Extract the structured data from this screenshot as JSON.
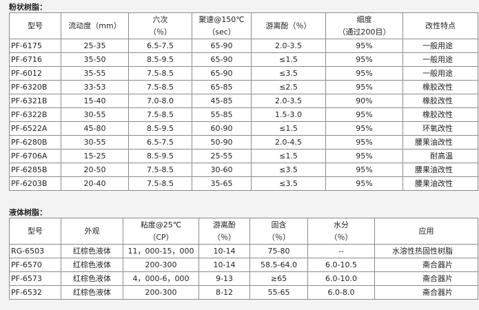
{
  "powder": {
    "title": "粉状树脂：",
    "header": [
      "型号",
      "流动度（mm）",
      "六次\n（％）",
      "聚速@150℃\n（sec）",
      "游离酚（％）",
      "细度\n（通过200目）",
      "改性特点"
    ],
    "rows": [
      [
        "PF-6175",
        "25-35",
        "6.5-7.5",
        "65-90",
        "2.0-3.5",
        "95%",
        "一般用途"
      ],
      [
        "PF-6716",
        "35-50",
        "8.5-9.5",
        "65-90",
        "≤1.5",
        "95%",
        "一般用途"
      ],
      [
        "PF-6012",
        "35-55",
        "7.5-8.5",
        "65-90",
        "≤3.5",
        "95%",
        "一般用途"
      ],
      [
        "PF-6320B",
        "33-53",
        "7.5-8.5",
        "65-85",
        "≤2.5",
        "95%",
        "橡胶改性"
      ],
      [
        "PF-6321B",
        "15-40",
        "7.0-8.0",
        "45-85",
        "2.0-3.5",
        "90%",
        "橡胶改性"
      ],
      [
        "PF-6322B",
        "30-55",
        "7.5-8.5",
        "55-85",
        "1.5-3.0",
        "95%",
        "橡胶改性"
      ],
      [
        "PF-6522A",
        "45-80",
        "8.5-9.5",
        "60-90",
        "≤1.5",
        "95%",
        "环氧改性"
      ],
      [
        "PF-6280B",
        "30-55",
        "6.5-7.5",
        "50-90",
        "2.0-4.5",
        "95%",
        "腰果油改性"
      ],
      [
        "PF-6706A",
        "15-25",
        "8.5-9.5",
        "25-55",
        "≤1.5",
        "95%",
        "耐高温"
      ],
      [
        "PF-6285B",
        "20-50",
        "7.5-8.5",
        "30-60",
        "≤3.5",
        "95%",
        "腰果油改性"
      ],
      [
        "PF-6203B",
        "20-40",
        "7.5-8.5",
        "35-65",
        "≤3.5",
        "95%",
        "腰果油改性"
      ]
    ]
  },
  "liquid": {
    "title": "液体树脂：",
    "header": [
      "型号",
      "外观",
      "粘度@25℃\n（CP）",
      "游离酚\n（％）",
      "固含\n（％）",
      "水分\n（％）",
      "应用"
    ],
    "rows": [
      [
        "RG-6503",
        "红棕色液体",
        "11，000-15，000",
        "10-14",
        "75-80",
        "--",
        "水溶性热固性树脂"
      ],
      [
        "PF-6570",
        "红棕色液体",
        "200-300",
        "10-14",
        "58.5-64.0",
        "6.0-10.5",
        "斋合器片"
      ],
      [
        "PF-6573",
        "红棕色液体",
        "4，000-6，000",
        "9-13",
        "≥65",
        "6.0-10.0",
        "斋合器片"
      ],
      [
        "PF-6532",
        "红棕色液体",
        "200-300",
        "8-12",
        "55-65",
        "6.0-8.0",
        "斋合器片"
      ]
    ]
  }
}
